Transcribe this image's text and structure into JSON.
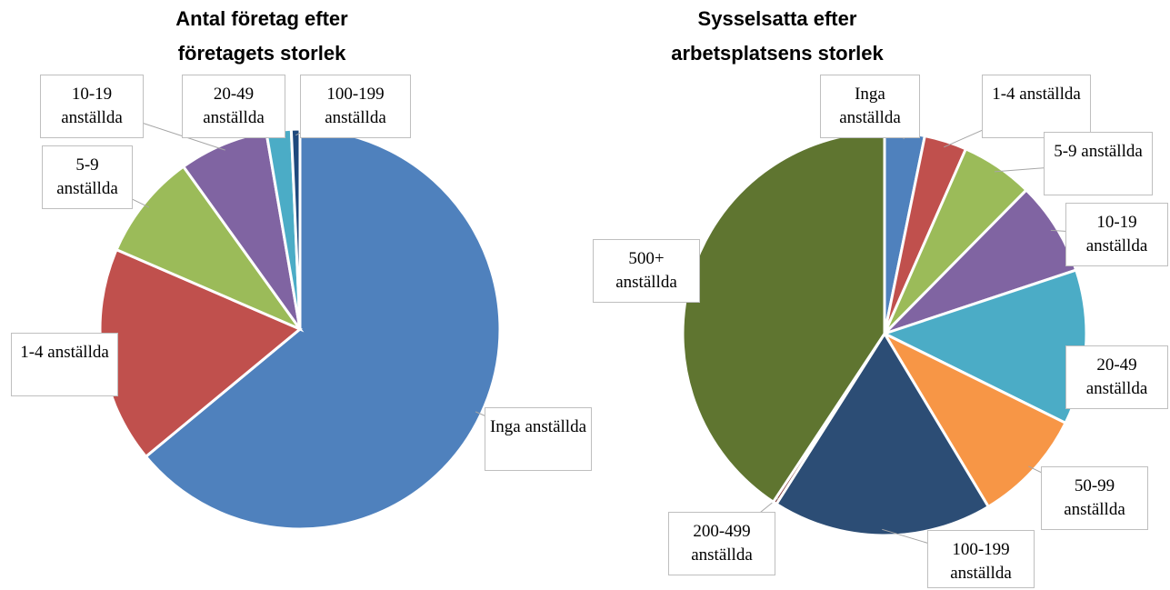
{
  "chart_data": [
    {
      "type": "pie",
      "title": "Antal företag efter företagets storlek",
      "categories": [
        "Inga anställda",
        "1-4 anställda",
        "5-9 anställda",
        "10-19 anställda",
        "20-49 anställda",
        "100-199 anställda"
      ],
      "values": [
        64,
        17.5,
        8.6,
        7.2,
        2,
        0.7
      ],
      "colors": [
        "#4f81bd",
        "#c0504d",
        "#9bbb59",
        "#8064a2",
        "#4bacc6",
        "#1f497d"
      ]
    },
    {
      "type": "pie",
      "title": "Sysselsatta efter arbetsplatsens storlek",
      "categories": [
        "Inga anställda",
        "1-4 anställda",
        "5-9 anställda",
        "10-19 anställda",
        "20-49 anställda",
        "50-99 anställda",
        "100-199 anställda",
        "200-499 anställda",
        "500+ anställda"
      ],
      "values": [
        3.2,
        3.4,
        5.8,
        7.5,
        12.4,
        9.1,
        17.6,
        0.3,
        40.7
      ],
      "colors": [
        "#4f81bd",
        "#c0504d",
        "#9bbb59",
        "#8064a2",
        "#4bacc6",
        "#f79646",
        "#2c4d75",
        "#772c2a",
        "#5f7530"
      ]
    }
  ]
}
